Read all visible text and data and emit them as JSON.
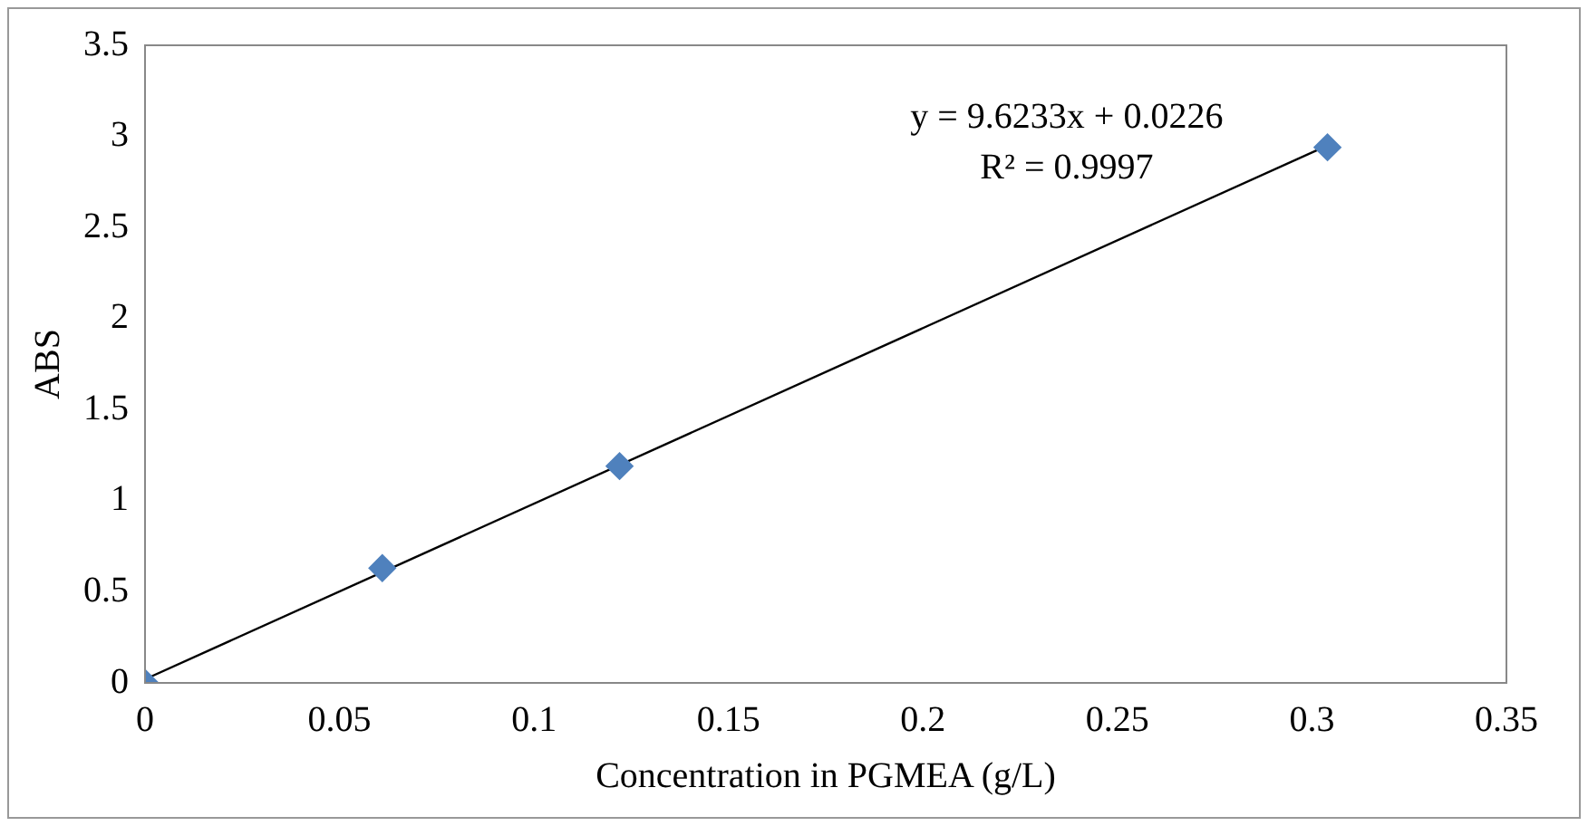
{
  "chart_data": {
    "type": "scatter",
    "xlabel": "Concentration in PGMEA (g/L)",
    "ylabel": "ABS",
    "marker": "diamond",
    "grid": false,
    "legend": false,
    "xlim": [
      0,
      0.35
    ],
    "xticks": [
      0,
      0.05,
      0.1,
      0.15,
      0.2,
      0.25,
      0.3,
      0.35
    ],
    "ylim": [
      0,
      3.5
    ],
    "yticks": [
      0,
      0.5,
      1,
      1.5,
      2,
      2.5,
      3,
      3.5
    ],
    "series": [
      {
        "color": "#4f81bd",
        "x": [
          0,
          0.061,
          0.122,
          0.304
        ],
        "values": [
          0,
          0.63,
          1.19,
          2.94
        ]
      },
      {
        "type": "line",
        "color": "#000000",
        "x": [
          0,
          0.304
        ],
        "values": [
          0.02,
          2.95
        ],
        "marker": "none",
        "line_style": "solid"
      }
    ],
    "annotations": [
      "y = 9.6233x + 0.0226",
      "R² = 0.9997"
    ]
  }
}
